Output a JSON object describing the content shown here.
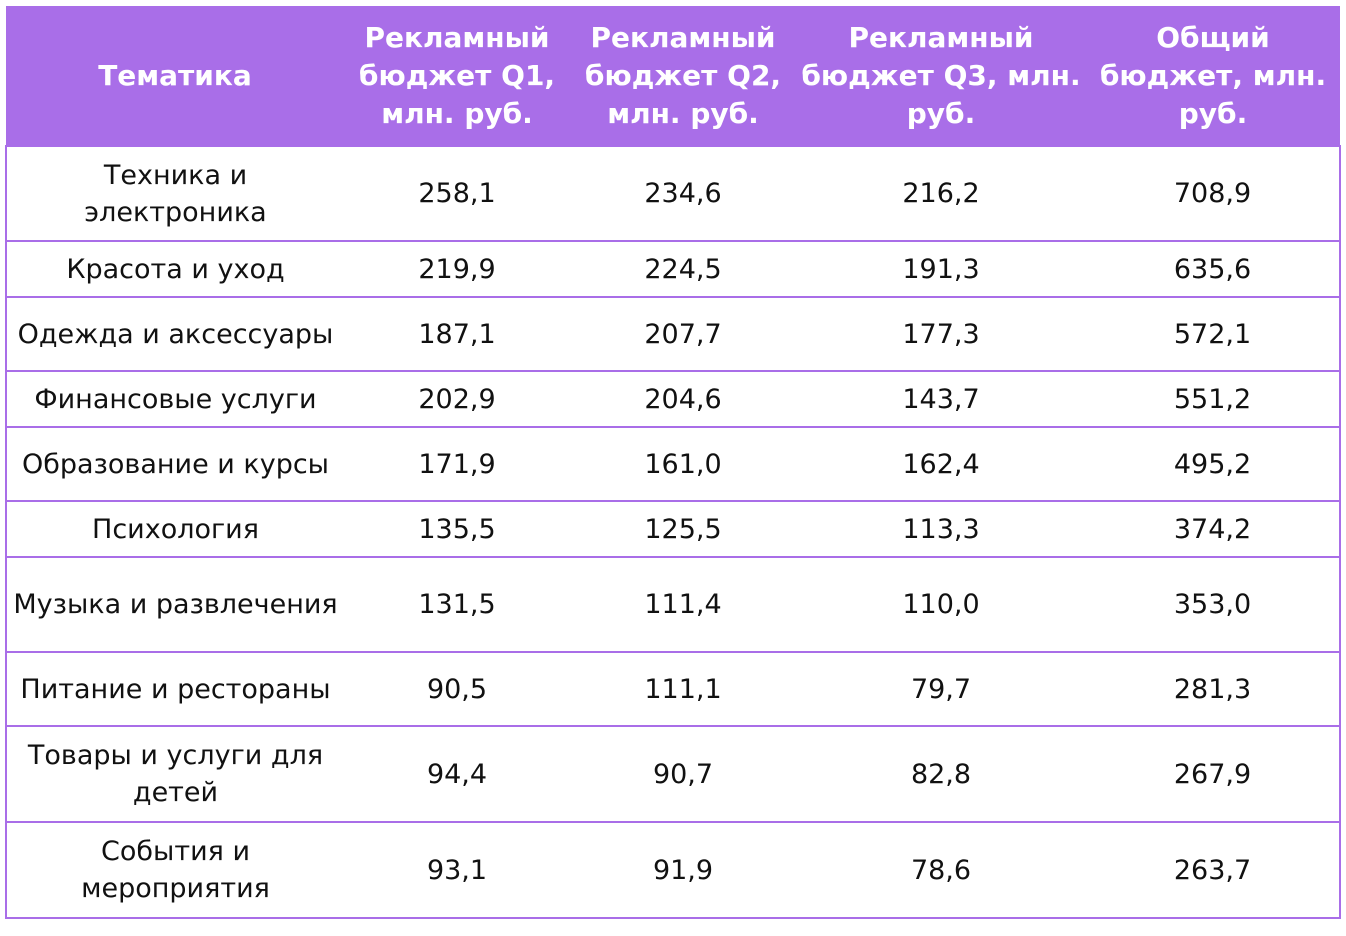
{
  "table": {
    "headers": [
      "Тематика",
      "Рекламный бюджет Q1, млн. руб.",
      "Рекламный бюджет Q2, млн. руб.",
      "Рекламный бюджет Q3, млн. руб.",
      "Общий бюджет, млн. руб."
    ],
    "rows": [
      [
        "Техника и электроника",
        "258,1",
        "234,6",
        "216,2",
        "708,9"
      ],
      [
        "Красота и уход",
        "219,9",
        "224,5",
        "191,3",
        "635,6"
      ],
      [
        "Одежда и аксессуары",
        "187,1",
        "207,7",
        "177,3",
        "572,1"
      ],
      [
        "Финансовые услуги",
        "202,9",
        "204,6",
        "143,7",
        "551,2"
      ],
      [
        "Образование и курсы",
        "171,9",
        "161,0",
        "162,4",
        "495,2"
      ],
      [
        "Психология",
        "135,5",
        "125,5",
        "113,3",
        "374,2"
      ],
      [
        "Музыка и развлечения",
        "131,5",
        "111,4",
        "110,0",
        "353,0"
      ],
      [
        "Питание и рестораны",
        "90,5",
        "111,1",
        "79,7",
        "281,3"
      ],
      [
        "Товары и услуги для детей",
        "94,4",
        "90,7",
        "82,8",
        "267,9"
      ],
      [
        "События и мероприятия",
        "93,1",
        "91,9",
        "78,6",
        "263,7"
      ]
    ]
  },
  "colors": {
    "header_bg": "#a96ee8",
    "header_text": "#ffffff",
    "border": "#a96ee8"
  }
}
